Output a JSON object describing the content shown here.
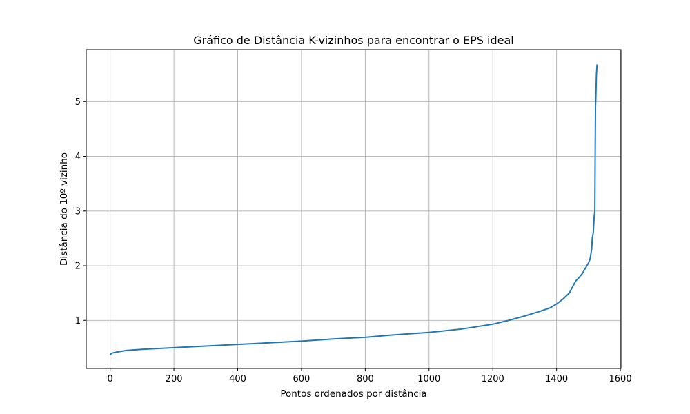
{
  "chart_data": {
    "type": "line",
    "title": "Gráfico de Distância K-vizinhos para encontrar o EPS ideal",
    "xlabel": "Pontos ordenados por distância",
    "ylabel": "Distância do 10º vizinho",
    "xlim": [
      -75,
      1602
    ],
    "ylim": [
      0.12,
      5.95
    ],
    "xticks": [
      0,
      200,
      400,
      600,
      800,
      1000,
      1200,
      1400,
      1600
    ],
    "yticks": [
      1,
      2,
      3,
      4,
      5
    ],
    "xtick_labels": [
      "0",
      "200",
      "400",
      "600",
      "800",
      "1000",
      "1200",
      "1400",
      "1600"
    ],
    "ytick_labels": [
      "1",
      "2",
      "3",
      "4",
      "5"
    ],
    "grid": true,
    "line_color": "#1f77b4",
    "series": [
      {
        "name": "",
        "x": [
          0,
          5,
          20,
          50,
          100,
          200,
          300,
          400,
          500,
          600,
          700,
          800,
          880,
          1000,
          1100,
          1200,
          1250,
          1300,
          1350,
          1380,
          1400,
          1420,
          1440,
          1460,
          1470,
          1480,
          1490,
          1500,
          1505,
          1510,
          1512,
          1515,
          1517,
          1518,
          1520,
          1521,
          1522,
          1523,
          1525,
          1527
        ],
        "y": [
          0.37,
          0.4,
          0.42,
          0.45,
          0.47,
          0.5,
          0.53,
          0.56,
          0.59,
          0.62,
          0.66,
          0.69,
          0.73,
          0.78,
          0.84,
          0.93,
          1.0,
          1.08,
          1.17,
          1.23,
          1.3,
          1.39,
          1.5,
          1.72,
          1.78,
          1.85,
          1.95,
          2.05,
          2.12,
          2.3,
          2.5,
          2.6,
          2.8,
          2.9,
          3.0,
          4.0,
          4.9,
          5.05,
          5.5,
          5.68
        ]
      }
    ]
  }
}
